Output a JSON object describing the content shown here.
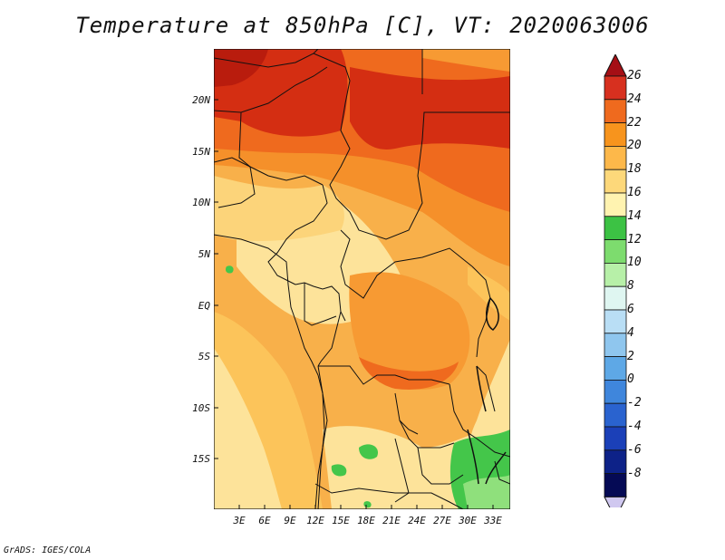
{
  "title": "Temperature at 850hPa [C], VT: 2020063006",
  "footer": "GrADS: IGES/COLA",
  "map": {
    "lat_labels": [
      "20N",
      "15N",
      "10N",
      "5N",
      "EQ",
      "5S",
      "10S",
      "15S"
    ],
    "lon_labels": [
      "3E",
      "6E",
      "9E",
      "12E",
      "15E",
      "18E",
      "21E",
      "24E",
      "27E",
      "30E",
      "33E"
    ]
  },
  "colorbar": {
    "labels": [
      "26",
      "24",
      "22",
      "20",
      "18",
      "16",
      "14",
      "12",
      "10",
      "8",
      "6",
      "4",
      "2",
      "0",
      "-2",
      "-4",
      "-6",
      "-8"
    ],
    "colors": [
      "#a50f15",
      "#d7301f",
      "#ef6a1e",
      "#f7941d",
      "#fdb84a",
      "#fdd87a",
      "#fff3b0",
      "#3cc244",
      "#7ddc6e",
      "#b7f0a8",
      "#dff6f1",
      "#b9def5",
      "#8fc6ee",
      "#5ea8e6",
      "#3f86dc",
      "#2a63cf",
      "#1b40b8",
      "#0d2288",
      "#050a55",
      "#d0c8f0"
    ]
  },
  "colors": {
    "hot": "#d42e12",
    "warm": "#f06a1e",
    "mid": "#f9a23a",
    "mild": "#fcc45a",
    "cool": "#fde39a",
    "green": "#44c64a",
    "lightgreen": "#8fe07c",
    "border": "#111111"
  }
}
